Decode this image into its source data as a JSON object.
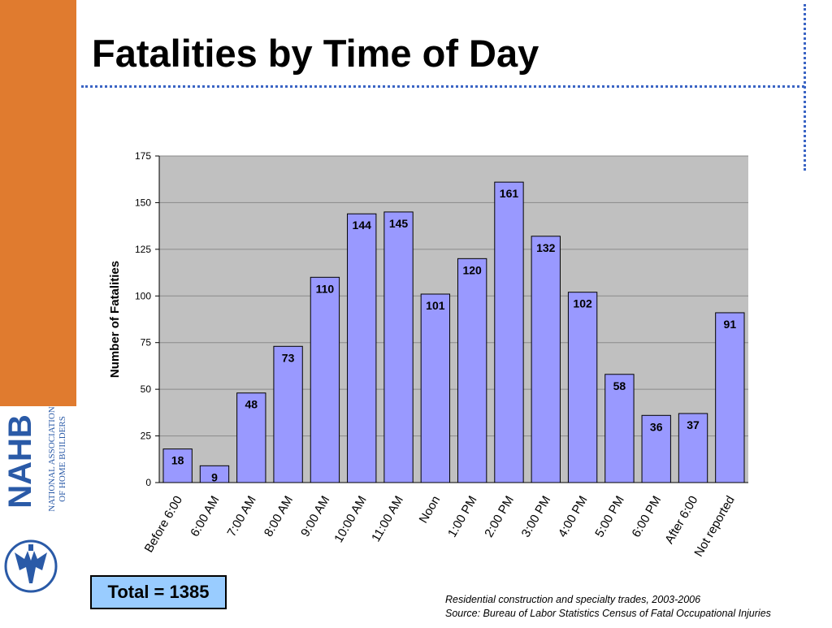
{
  "slide": {
    "title": "Fatalities by Time of Day",
    "total_label": "Total = 1385",
    "notes": [
      "Residential construction and specialty trades, 2003-2006",
      "Source: Bureau of Labor Statistics Census of Fatal Occupational Injuries"
    ]
  },
  "logo": {
    "letters": "NAHB",
    "line1": "NATIONAL ASSOCIATION",
    "line2": "OF HOME BUILDERS"
  },
  "colors": {
    "side_band": "#e07b2f",
    "bar_fill": "#9999ff",
    "plot_bg": "#c0c0c0",
    "divider": "#3a64c4",
    "logo_blue": "#2a5aa7",
    "total_fill": "#99ccff"
  },
  "chart_data": {
    "type": "bar",
    "title": "",
    "xlabel": "",
    "ylabel": "Number of Fatalities",
    "ylim": [
      0,
      175
    ],
    "yticks": [
      0,
      25,
      50,
      75,
      100,
      125,
      150,
      175
    ],
    "grid": true,
    "data_labels": true,
    "categories": [
      "Before 6:00",
      "6:00 AM",
      "7:00 AM",
      "8:00 AM",
      "9:00 AM",
      "10:00 AM",
      "11:00 AM",
      "Noon",
      "1:00 PM",
      "2:00 PM",
      "3:00 PM",
      "4:00 PM",
      "5:00 PM",
      "6:00 PM",
      "After 6:00",
      "Not reported"
    ],
    "values": [
      18,
      9,
      48,
      73,
      110,
      144,
      145,
      101,
      120,
      161,
      132,
      102,
      58,
      36,
      37,
      91
    ]
  }
}
